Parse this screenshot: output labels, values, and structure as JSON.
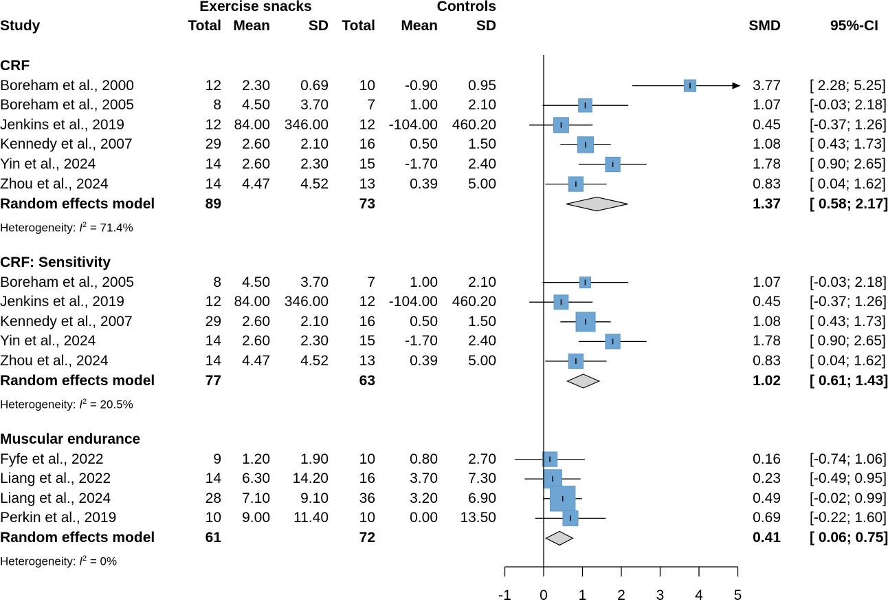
{
  "chart_data": {
    "type": "forest",
    "header": {
      "group1": "Exercise snacks",
      "group2": "Controls",
      "study": "Study",
      "total": "Total",
      "mean": "Mean",
      "sd": "SD",
      "smd": "SMD",
      "ci": "95%-CI"
    },
    "xlim": [
      -1,
      5
    ],
    "ticks": [
      "-1",
      "0",
      "1",
      "2",
      "3",
      "4",
      "5"
    ],
    "groups": [
      {
        "title": "CRF",
        "studies": [
          {
            "name": "Boreham et al., 2000",
            "n1": "12",
            "m1": "2.30",
            "sd1": "0.69",
            "n2": "10",
            "m2": "-0.90",
            "sd2": "0.95",
            "smd": 3.77,
            "lo": 2.28,
            "hi": 5.25,
            "smd_text": "3.77",
            "ci_text": "[ 2.28; 5.25]",
            "weight": 0.55
          },
          {
            "name": "Boreham et al., 2005",
            "n1": "8",
            "m1": "4.50",
            "sd1": "3.70",
            "n2": "7",
            "m2": "1.00",
            "sd2": "2.10",
            "smd": 1.07,
            "lo": -0.03,
            "hi": 2.18,
            "smd_text": "1.07",
            "ci_text": "[-0.03; 2.18]",
            "weight": 0.65
          },
          {
            "name": "Jenkins et al., 2019",
            "n1": "12",
            "m1": "84.00",
            "sd1": "346.00",
            "n2": "12",
            "m2": "-104.00",
            "sd2": "460.20",
            "smd": 0.45,
            "lo": -0.37,
            "hi": 1.26,
            "smd_text": "0.45",
            "ci_text": "[-0.37; 1.26]",
            "weight": 0.75
          },
          {
            "name": "Kennedy et al., 2007",
            "n1": "29",
            "m1": "2.60",
            "sd1": "2.10",
            "n2": "16",
            "m2": "0.50",
            "sd2": "1.50",
            "smd": 1.08,
            "lo": 0.43,
            "hi": 1.73,
            "smd_text": "1.08",
            "ci_text": "[ 0.43; 1.73]",
            "weight": 0.8
          },
          {
            "name": "Yin et al., 2024",
            "n1": "14",
            "m1": "2.60",
            "sd1": "2.30",
            "n2": "15",
            "m2": "-1.70",
            "sd2": "2.40",
            "smd": 1.78,
            "lo": 0.9,
            "hi": 2.65,
            "smd_text": "1.78",
            "ci_text": "[ 0.90; 2.65]",
            "weight": 0.72
          },
          {
            "name": "Zhou et al., 2024",
            "n1": "14",
            "m1": "4.47",
            "sd1": "4.52",
            "n2": "13",
            "m2": "0.39",
            "sd2": "5.00",
            "smd": 0.83,
            "lo": 0.04,
            "hi": 1.62,
            "smd_text": "0.83",
            "ci_text": "[ 0.04; 1.62]",
            "weight": 0.72
          }
        ],
        "model": {
          "label": "Random effects model",
          "n1": "89",
          "n2": "73",
          "smd": 1.37,
          "lo": 0.58,
          "hi": 2.17,
          "smd_text": "1.37",
          "ci_text": "[ 0.58; 2.17]"
        },
        "heterogeneity": {
          "prefix": "Heterogeneity: ",
          "i": "I",
          "sup": "2",
          "value": " = 71.4%"
        }
      },
      {
        "title": "CRF: Sensitivity",
        "studies": [
          {
            "name": "Boreham et al., 2005",
            "n1": "8",
            "m1": "4.50",
            "sd1": "3.70",
            "n2": "7",
            "m2": "1.00",
            "sd2": "2.10",
            "smd": 1.07,
            "lo": -0.03,
            "hi": 2.18,
            "smd_text": "1.07",
            "ci_text": "[-0.03; 2.18]",
            "weight": 0.5
          },
          {
            "name": "Jenkins et al., 2019",
            "n1": "12",
            "m1": "84.00",
            "sd1": "346.00",
            "n2": "12",
            "m2": "-104.00",
            "sd2": "460.20",
            "smd": 0.45,
            "lo": -0.37,
            "hi": 1.26,
            "smd_text": "0.45",
            "ci_text": "[-0.37; 1.26]",
            "weight": 0.7
          },
          {
            "name": "Kennedy et al., 2007",
            "n1": "29",
            "m1": "2.60",
            "sd1": "2.10",
            "n2": "16",
            "m2": "0.50",
            "sd2": "1.50",
            "smd": 1.08,
            "lo": 0.43,
            "hi": 1.73,
            "smd_text": "1.08",
            "ci_text": "[ 0.43; 1.73]",
            "weight": 1.0
          },
          {
            "name": "Yin et al., 2024",
            "n1": "14",
            "m1": "2.60",
            "sd1": "2.30",
            "n2": "15",
            "m2": "-1.70",
            "sd2": "2.40",
            "smd": 1.78,
            "lo": 0.9,
            "hi": 2.65,
            "smd_text": "1.78",
            "ci_text": "[ 0.90; 2.65]",
            "weight": 0.72
          },
          {
            "name": "Zhou et al., 2024",
            "n1": "14",
            "m1": "4.47",
            "sd1": "4.52",
            "n2": "13",
            "m2": "0.39",
            "sd2": "5.00",
            "smd": 0.83,
            "lo": 0.04,
            "hi": 1.62,
            "smd_text": "0.83",
            "ci_text": "[ 0.04; 1.62]",
            "weight": 0.72
          }
        ],
        "model": {
          "label": "Random effects model",
          "n1": "77",
          "n2": "63",
          "smd": 1.02,
          "lo": 0.61,
          "hi": 1.43,
          "smd_text": "1.02",
          "ci_text": "[ 0.61; 1.43]"
        },
        "heterogeneity": {
          "prefix": "Heterogeneity: ",
          "i": "I",
          "sup": "2",
          "value": " = 20.5%"
        }
      },
      {
        "title": "Muscular endurance",
        "studies": [
          {
            "name": "Fyfe et al., 2022",
            "n1": "9",
            "m1": "1.20",
            "sd1": "1.90",
            "n2": "10",
            "m2": "0.80",
            "sd2": "2.70",
            "smd": 0.16,
            "lo": -0.74,
            "hi": 1.06,
            "smd_text": "0.16",
            "ci_text": "[-0.74; 1.06]",
            "weight": 0.72
          },
          {
            "name": "Liang et al., 2022",
            "n1": "14",
            "m1": "6.30",
            "sd1": "14.20",
            "n2": "16",
            "m2": "3.70",
            "sd2": "7.30",
            "smd": 0.23,
            "lo": -0.49,
            "hi": 0.95,
            "smd_text": "0.23",
            "ci_text": "[-0.49; 0.95]",
            "weight": 0.95
          },
          {
            "name": "Liang et al., 2024",
            "n1": "28",
            "m1": "7.10",
            "sd1": "9.10",
            "n2": "36",
            "m2": "3.20",
            "sd2": "6.90",
            "smd": 0.49,
            "lo": -0.02,
            "hi": 0.99,
            "smd_text": "0.49",
            "ci_text": "[-0.02; 0.99]",
            "weight": 1.35
          },
          {
            "name": "Perkin et al., 2019",
            "n1": "10",
            "m1": "9.00",
            "sd1": "11.40",
            "n2": "10",
            "m2": "0.00",
            "sd2": "13.50",
            "smd": 0.69,
            "lo": -0.22,
            "hi": 1.6,
            "smd_text": "0.69",
            "ci_text": "[-0.22; 1.60]",
            "weight": 0.75
          }
        ],
        "model": {
          "label": "Random effects model",
          "n1": "61",
          "n2": "72",
          "smd": 0.41,
          "lo": 0.06,
          "hi": 0.75,
          "smd_text": "0.41",
          "ci_text": "[ 0.06; 0.75]"
        },
        "heterogeneity": {
          "prefix": "Heterogeneity: ",
          "i": "I",
          "sup": "2",
          "value": " = 0%"
        }
      }
    ],
    "colors": {
      "box": "#6fa5d2",
      "box_border": "#5b95c8",
      "diamond": "#d3d3d3"
    }
  }
}
